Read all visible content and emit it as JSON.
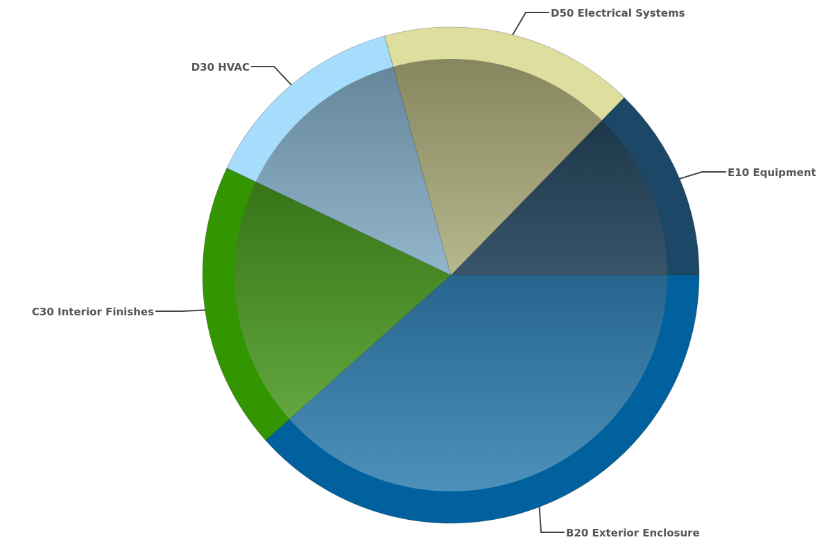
{
  "chart_data": {
    "type": "pie",
    "title": "",
    "slices": [
      {
        "label": "E10 Equipment",
        "value": 12.7,
        "color": "#1d4766"
      },
      {
        "label": "D50 Electrical Systems",
        "value": 16.6,
        "color": "#dede9e"
      },
      {
        "label": "D30 HVAC",
        "value": 13.6,
        "color": "#a6dcfc"
      },
      {
        "label": "C30 Interior Finishes",
        "value": 18.7,
        "color": "#339600"
      },
      {
        "label": "B20 Exterior Enclosure",
        "value": 38.4,
        "color": "#00619e"
      }
    ],
    "start_angle_deg": 0,
    "direction": "counterclockwise",
    "legend": "none"
  }
}
